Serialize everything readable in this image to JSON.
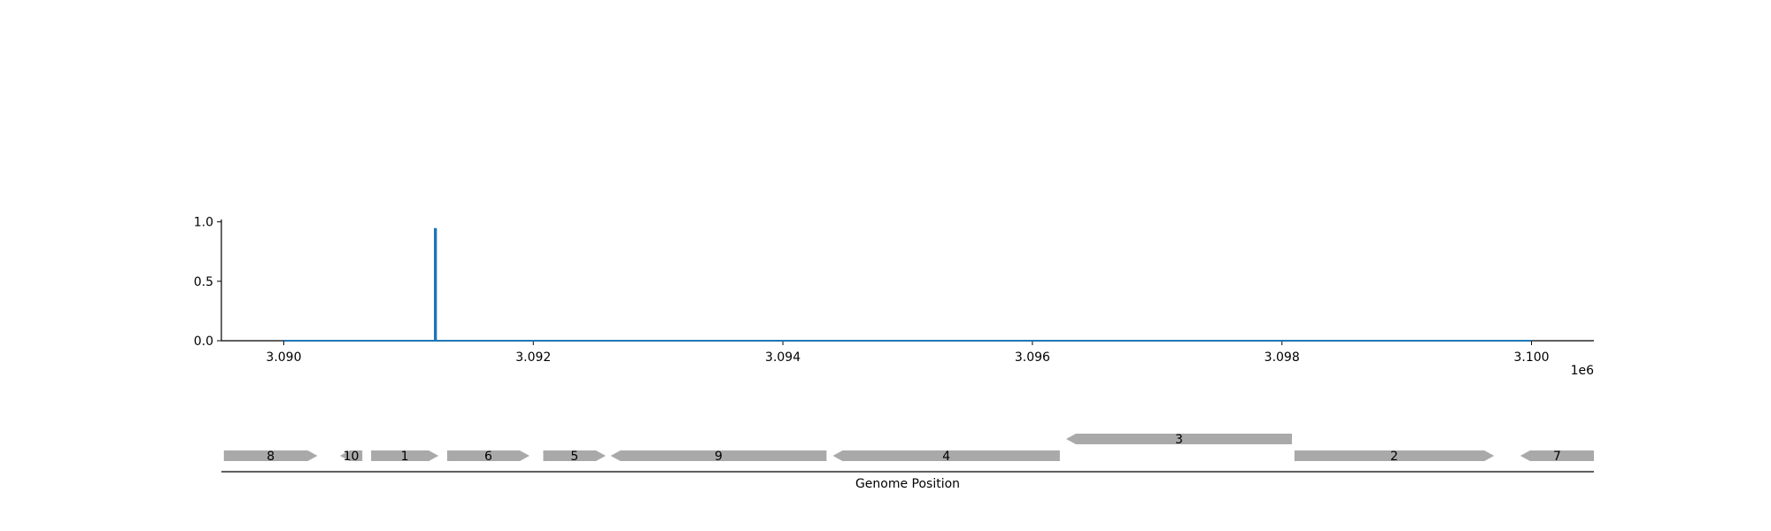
{
  "chart_data": [
    {
      "type": "line",
      "title": "",
      "xlabel": "",
      "ylabel": "",
      "x_offset_label": "1e6",
      "xlim": [
        3089500,
        3100500
      ],
      "ylim": [
        0,
        1.02
      ],
      "x_ticks": [
        3090000,
        3092000,
        3094000,
        3096000,
        3098000,
        3100000
      ],
      "x_tick_labels": [
        "3.090",
        "3.092",
        "3.094",
        "3.096",
        "3.098",
        "3.100"
      ],
      "y_ticks": [
        0.0,
        0.5,
        1.0
      ],
      "y_tick_labels": [
        "0.0",
        "0.5",
        "1.0"
      ],
      "grid": false,
      "series": [
        {
          "color": "#1f77b4",
          "x": [
            3090000,
            3091210,
            3091210,
            3091220,
            3091220,
            3100000
          ],
          "y": [
            0,
            0,
            0.94,
            0.94,
            0,
            0
          ]
        }
      ]
    },
    {
      "type": "gene-track",
      "xlabel": "Genome Position",
      "xlim": [
        3089500,
        3100500
      ],
      "gene_color": "#a9a9a9",
      "genes": [
        {
          "label": "8",
          "start": 3089520,
          "end": 3090270,
          "strand": 1,
          "row": 0
        },
        {
          "label": "10",
          "start": 3090450,
          "end": 3090630,
          "strand": -1,
          "row": 0
        },
        {
          "label": "1",
          "start": 3090700,
          "end": 3091240,
          "strand": 1,
          "row": 0
        },
        {
          "label": "6",
          "start": 3091310,
          "end": 3091970,
          "strand": 1,
          "row": 0
        },
        {
          "label": "5",
          "start": 3092080,
          "end": 3092580,
          "strand": 1,
          "row": 0
        },
        {
          "label": "9",
          "start": 3092620,
          "end": 3094350,
          "strand": -1,
          "row": 0
        },
        {
          "label": "4",
          "start": 3094400,
          "end": 3096220,
          "strand": -1,
          "row": 0
        },
        {
          "label": "3",
          "start": 3096270,
          "end": 3098080,
          "strand": -1,
          "row": 1
        },
        {
          "label": "2",
          "start": 3098100,
          "end": 3099700,
          "strand": 1,
          "row": 0
        },
        {
          "label": "7",
          "start": 3099910,
          "end": 3100500,
          "strand": -1,
          "row": 0
        }
      ]
    }
  ]
}
